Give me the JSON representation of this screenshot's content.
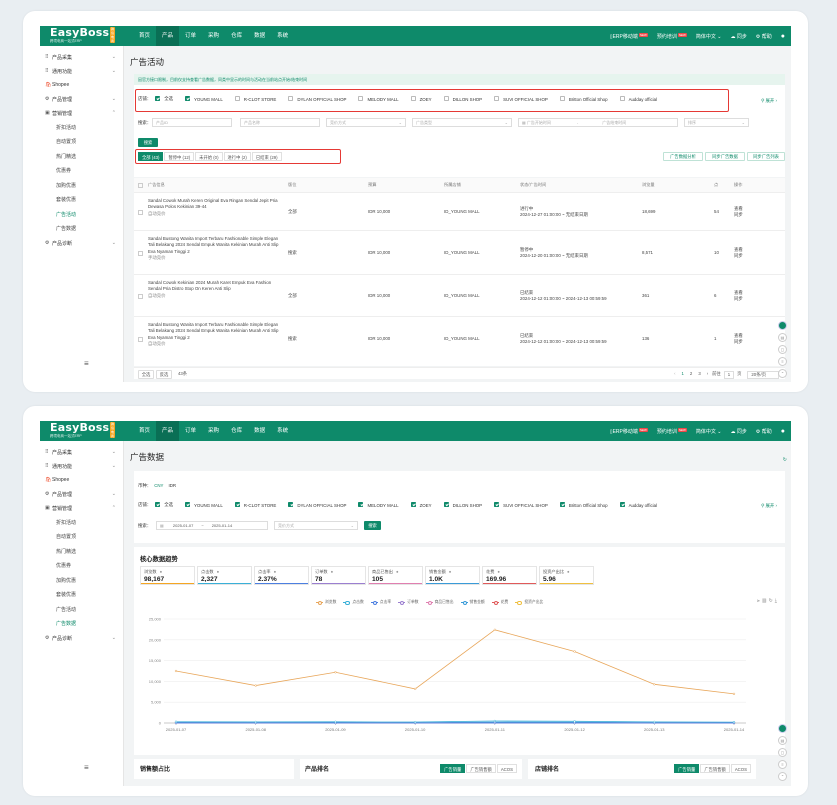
{
  "colors": {
    "brand": "#0e8a6a",
    "highlight": "#e53935"
  },
  "app": {
    "logo": "EasyBoss",
    "logo_sub": "跨境电商一站式ERP",
    "logo_tag": "跨境电商",
    "nav": [
      "首页",
      "产品",
      "订单",
      "采购",
      "仓库",
      "数据",
      "系统"
    ],
    "active_nav": "产品",
    "erp_mobile": "ERP移动端",
    "erp_badge": "NEW",
    "meeting": "预约培训",
    "meeting_badge": "NEW",
    "lang": "简体中文",
    "sync": "同步",
    "help": "帮助"
  },
  "sidebar": {
    "top": [
      {
        "label": "产品采集",
        "icon": "grid-icon",
        "chev": "⌄"
      },
      {
        "label": "通用功能",
        "icon": "grid-icon",
        "chev": "⌄"
      },
      {
        "label": "Shopee",
        "icon": "shopee-icon",
        "chev": ""
      },
      {
        "label": "产品管理",
        "icon": "gear-icon",
        "chev": "⌄"
      },
      {
        "label": "营销管理",
        "icon": "megaphone-icon",
        "chev": "⌃"
      }
    ],
    "subs": [
      "折扣活动",
      "自动置顶",
      "热门精选",
      "优惠券",
      "加购优惠",
      "套装优惠",
      "广告活动",
      "广告数据"
    ],
    "bottom": {
      "label": "产品诊断",
      "chev": "⌄"
    },
    "menu_icon": "≡"
  },
  "screen1": {
    "title": "广告活动",
    "notice": "因官方接口限制，目前仅支持查看广告数据，同类中显示的时间与活动在当前站点开始/结束时间",
    "shops_label": "店铺：",
    "shops": [
      {
        "name": "全选",
        "on": true
      },
      {
        "name": "YOUNG MALL",
        "on": true
      },
      {
        "name": "R-CLOT STORE",
        "on": false
      },
      {
        "name": "DYLAN OFFICIAL SHOP",
        "on": false
      },
      {
        "name": "MELODY MALL",
        "on": false
      },
      {
        "name": "ZOEY",
        "on": false
      },
      {
        "name": "DILLON SHOP",
        "on": false
      },
      {
        "name": "SUVI OFFICIAL SHOP",
        "on": false
      },
      {
        "name": "Britton Official Shop",
        "on": false
      },
      {
        "name": "Audday official",
        "on": false
      }
    ],
    "expand": "展开 ›",
    "search_label": "搜索：",
    "fields": {
      "f1": "产品ID",
      "f2": "产品名称",
      "f3": "竞价方式",
      "f4": "广告类型",
      "f5": "广告开始时间",
      "f6": "广告结束时间",
      "f7": "排序"
    },
    "search_btn": "搜索",
    "tabs": [
      {
        "label": "全部 (43)",
        "on": true
      },
      {
        "label": "暂停中 (12)",
        "on": false
      },
      {
        "label": "未开始 (0)",
        "on": false
      },
      {
        "label": "进行中 (2)",
        "on": false
      },
      {
        "label": "已结束 (29)",
        "on": false
      }
    ],
    "btn_analysis": "广告数据分析",
    "btn_sync_data": "同步广告数据",
    "btn_sync_list": "同步广告列表",
    "headers": {
      "info": "广告信息",
      "pos": "版位",
      "budget": "预算",
      "shop": "所属店铺",
      "status": "状态/广告时间",
      "views": "浏览量",
      "clicks": "点",
      "op": "操作"
    },
    "rows": [
      {
        "name": "Sandal Cowok Murah Keren Original Eva Ringan Sendal Jepit Pria Dewasa Polos Kekinian 39-44",
        "bid": "自动竞价",
        "pos": "全部",
        "budget": "IDR 10,000",
        "shop": "ID_YOUNG MALL",
        "status": "进行中",
        "time": "2024-12-27 01:00:00 ~ 无结束日期",
        "views": "18,699",
        "clicks": "54",
        "ops": [
          "查看",
          "同步"
        ]
      },
      {
        "name": "Sandal Bustong Wanita Import Terbaru Fashionable Simple Elegan Tali Belakang 2024 Sendal Empuk Wanita Kekinian Murah Anti Slip Eva Nyaman Tinggi 2",
        "bid": "手动竞价",
        "pos": "搜索",
        "budget": "IDR 10,000",
        "shop": "ID_YOUNG MALL",
        "status": "暂停中",
        "time": "2024-12-20 01:00:00 ~ 无结束日期",
        "views": "8,571",
        "clicks": "10",
        "ops": [
          "查看",
          "同步"
        ]
      },
      {
        "name": "Sandal Cowok Kekinian 2024 Murah Karet Empuk Eva Fashion Sendal Pria Distro Stop On Keren Anti Slip",
        "bid": "自动竞价",
        "pos": "全部",
        "budget": "IDR 10,000",
        "shop": "ID_YOUNG MALL",
        "status": "已结束",
        "time": "2024-12-12 01:00:00 ~ 2024-12-13 00:59:59",
        "views": "361",
        "clicks": "6",
        "ops": [
          "查看",
          "同步"
        ]
      },
      {
        "name": "Sandal Bustong Wanita Import Terbaru Fashionable Simple Elegan Tali Belakang 2024 Sendal Empuk Wanita Kekinian Murah Anti Slip Eva Nyaman Tinggi 2",
        "bid": "自动竞价",
        "pos": "搜索",
        "budget": "IDR 10,000",
        "shop": "ID_YOUNG MALL",
        "status": "已结束",
        "time": "2024-12-12 01:00:00 ~ 2024-12-13 00:59:59",
        "views": "136",
        "clicks": "1",
        "ops": [
          "查看",
          "同步"
        ]
      }
    ],
    "footer": {
      "select_all": "全选",
      "invert": "反选",
      "count": "43条",
      "prev": "‹",
      "pages": [
        "1",
        "2",
        "3"
      ],
      "next": "›",
      "goto": "前往",
      "page_val": "1",
      "page_unit": "页",
      "per_page": "20条/页"
    }
  },
  "screen2": {
    "title": "广告数据",
    "currency_label": "币种：",
    "currency_opts": [
      "CNY",
      "IDR"
    ],
    "shops_label": "店铺：",
    "shops": [
      {
        "name": "全选",
        "on": true
      },
      {
        "name": "YOUNG MALL",
        "on": true
      },
      {
        "name": "R-CLOT STORE",
        "on": true
      },
      {
        "name": "DYLAN OFFICIAL SHOP",
        "on": true
      },
      {
        "name": "MELODY MALL",
        "on": true
      },
      {
        "name": "ZOEY",
        "on": true
      },
      {
        "name": "DILLON SHOP",
        "on": true
      },
      {
        "name": "SUVI OFFICIAL SHOP",
        "on": true
      },
      {
        "name": "Britton Official Shop",
        "on": true
      },
      {
        "name": "Audday official",
        "on": true
      }
    ],
    "expand": "展开 ›",
    "search_label": "搜索：",
    "date_from": "2025-01-07",
    "date_sep": "~",
    "date_to": "2025-01-14",
    "bid": "竞价方式",
    "search_btn": "搜索",
    "section_title": "核心数据趋势",
    "metrics": [
      {
        "label": "浏览数",
        "value": "98,167",
        "color": "#f5a623"
      },
      {
        "label": "点击数",
        "value": "2,327",
        "color": "#3ab0d8"
      },
      {
        "label": "点击率",
        "value": "2.37%",
        "color": "#4c7fe0"
      },
      {
        "label": "订单数",
        "value": "78",
        "color": "#9b7fd0"
      },
      {
        "label": "商品已售出",
        "value": "105",
        "color": "#e07fb0"
      },
      {
        "label": "销售金额",
        "value": "1.0K",
        "color": "#3a9bd8"
      },
      {
        "label": "花费",
        "value": "169.96",
        "color": "#e05a5a"
      },
      {
        "label": "投资产出比",
        "value": "5.96",
        "color": "#f0c040"
      }
    ],
    "bottom_titles": [
      "销售额占比",
      "产品排名",
      "店铺排名"
    ],
    "bottom_tabs": [
      "广告销量",
      "广告销售额",
      "ACOS"
    ]
  },
  "chart_data": {
    "type": "line",
    "x": [
      "2025-01-07",
      "2025-01-08",
      "2025-01-09",
      "2025-01-10",
      "2025-01-11",
      "2025-01-12",
      "2025-01-13",
      "2025-01-14"
    ],
    "series": [
      {
        "name": "浏览数",
        "color": "#e8a65a",
        "values": [
          12500,
          9000,
          12200,
          8200,
          22400,
          17200,
          9300,
          7000
        ]
      },
      {
        "name": "点击数",
        "color": "#3ab0d8",
        "values": [
          300,
          250,
          280,
          220,
          480,
          400,
          260,
          210
        ]
      },
      {
        "name": "点击率",
        "color": "#4c7fe0",
        "values": [
          2,
          2,
          2,
          2,
          2,
          2,
          2,
          2
        ]
      },
      {
        "name": "订单数",
        "color": "#9b7fd0",
        "values": [
          10,
          8,
          12,
          6,
          15,
          12,
          9,
          6
        ]
      },
      {
        "name": "商品已售出",
        "color": "#e07fb0",
        "values": [
          14,
          10,
          16,
          8,
          20,
          16,
          12,
          9
        ]
      },
      {
        "name": "销售金额",
        "color": "#3a9bd8",
        "values": [
          130,
          100,
          140,
          90,
          200,
          160,
          110,
          80
        ]
      },
      {
        "name": "花费",
        "color": "#e05a5a",
        "values": [
          25,
          20,
          24,
          18,
          30,
          28,
          15,
          10
        ]
      },
      {
        "name": "投资产出比",
        "color": "#f0c040",
        "values": [
          5,
          5,
          6,
          5,
          7,
          6,
          6,
          8
        ]
      }
    ],
    "yticks": [
      "25,000",
      "20,000",
      "15,000",
      "10,000",
      "5,000",
      "0"
    ],
    "ylim": [
      0,
      25000
    ]
  }
}
